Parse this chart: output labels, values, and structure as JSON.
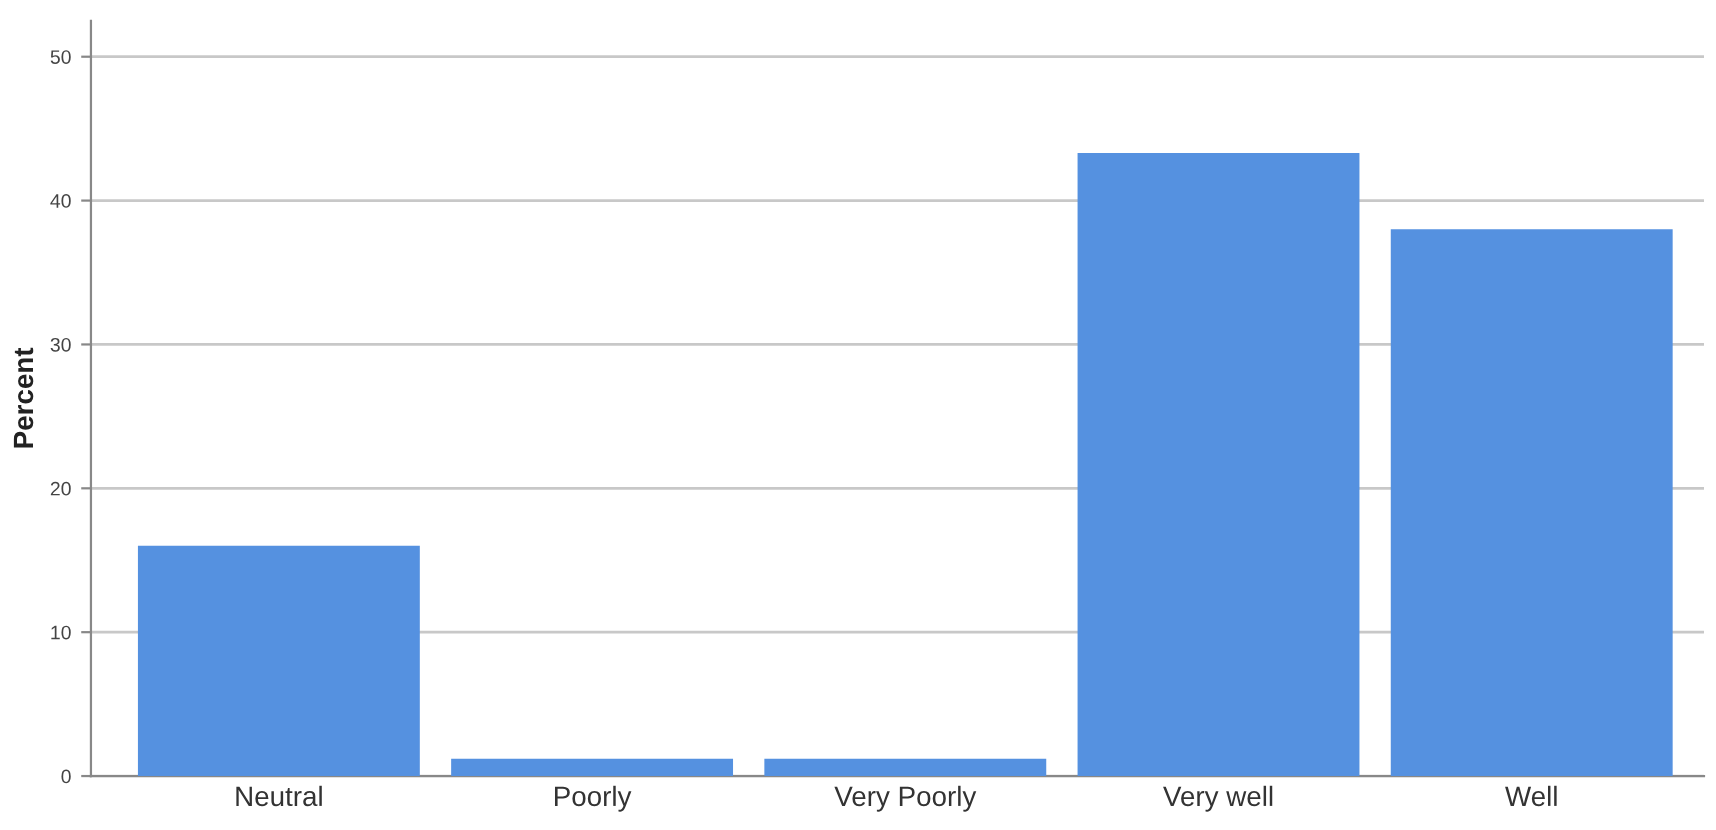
{
  "chart_data": {
    "type": "bar",
    "ylabel": "Percent",
    "categories": [
      "Neutral",
      "Poorly",
      "Very Poorly",
      "Very well",
      "Well"
    ],
    "values": [
      16,
      1.2,
      1.2,
      43.3,
      38
    ],
    "color": "#5591e0",
    "ylim": [
      0,
      52.5
    ],
    "yticks": [
      0,
      10,
      20,
      30,
      40,
      50
    ],
    "grid": "y"
  }
}
